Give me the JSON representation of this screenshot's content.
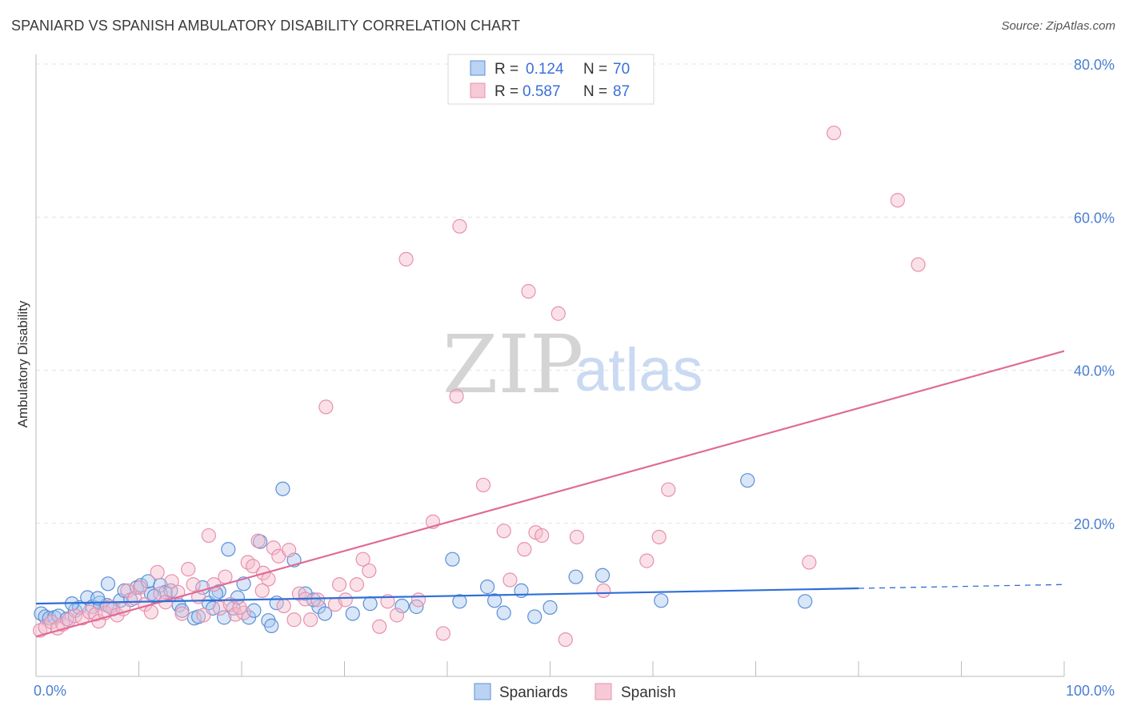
{
  "header": {
    "title": "SPANIARD VS SPANISH AMBULATORY DISABILITY CORRELATION CHART",
    "source": "Source: ZipAtlas.com"
  },
  "watermark": {
    "zip": "ZIP",
    "atlas": "atlas"
  },
  "colors": {
    "spaniards_fill": "#a9c8f0",
    "spaniards_stroke": "#5b8fd6",
    "spaniards_line": "#2f6fd6",
    "spanish_fill": "#f5bccd",
    "spanish_stroke": "#e890ad",
    "spanish_line": "#e06a97",
    "tick_label": "#4a7fd0",
    "grid": "#e3e3e3"
  },
  "legend": {
    "rows": [
      {
        "r_label": "R =",
        "r_value": "0.124",
        "n_label": "N =",
        "n_value": "70"
      },
      {
        "r_label": "R =",
        "r_value": "0.587",
        "n_label": "N =",
        "n_value": "87"
      }
    ],
    "bottom": [
      "Spaniards",
      "Spanish"
    ]
  },
  "chart_data": {
    "type": "scatter",
    "title": "SPANIARD VS SPANISH AMBULATORY DISABILITY CORRELATION CHART",
    "xlabel": "",
    "ylabel": "Ambulatory Disability",
    "xlim": [
      0,
      100
    ],
    "ylim": [
      0,
      80
    ],
    "x_tick_labels": [
      "0.0%",
      "100.0%"
    ],
    "y_ticks": [
      20,
      40,
      60,
      80
    ],
    "y_tick_labels": [
      "20.0%",
      "40.0%",
      "60.0%",
      "80.0%"
    ],
    "grid": true,
    "legend_position": "top-center",
    "series": [
      {
        "name": "Spaniards",
        "r": 0.124,
        "n": 70,
        "trend": {
          "x": [
            0,
            80
          ],
          "y": [
            9.5,
            11.5
          ],
          "dashed_extension_to": [
            100,
            12.0
          ]
        },
        "points": [
          [
            0.5,
            8.2
          ],
          [
            0.9,
            7.8
          ],
          [
            1.3,
            7.6
          ],
          [
            1.8,
            7.7
          ],
          [
            2.2,
            7.9
          ],
          [
            3.0,
            7.5
          ],
          [
            3.8,
            8.6
          ],
          [
            4.2,
            9.0
          ],
          [
            5.0,
            10.3
          ],
          [
            5.5,
            9.1
          ],
          [
            6.2,
            9.6
          ],
          [
            6.9,
            9.3
          ],
          [
            7.0,
            12.1
          ],
          [
            7.5,
            8.8
          ],
          [
            8.2,
            9.9
          ],
          [
            8.6,
            11.2
          ],
          [
            9.2,
            10.0
          ],
          [
            9.8,
            11.6
          ],
          [
            10.2,
            11.9
          ],
          [
            10.9,
            12.4
          ],
          [
            11.2,
            10.8
          ],
          [
            12.1,
            11.9
          ],
          [
            12.6,
            11.0
          ],
          [
            13.1,
            11.2
          ],
          [
            13.9,
            9.3
          ],
          [
            14.2,
            8.6
          ],
          [
            15.4,
            7.6
          ],
          [
            15.8,
            7.8
          ],
          [
            16.2,
            11.6
          ],
          [
            16.8,
            9.6
          ],
          [
            17.2,
            8.9
          ],
          [
            17.8,
            11.1
          ],
          [
            18.3,
            7.7
          ],
          [
            18.7,
            16.6
          ],
          [
            19.2,
            8.9
          ],
          [
            19.6,
            10.3
          ],
          [
            20.2,
            12.1
          ],
          [
            20.7,
            7.7
          ],
          [
            21.2,
            8.6
          ],
          [
            21.8,
            17.6
          ],
          [
            22.6,
            7.3
          ],
          [
            22.9,
            6.6
          ],
          [
            23.4,
            9.6
          ],
          [
            24.0,
            24.5
          ],
          [
            25.1,
            15.2
          ],
          [
            26.2,
            10.8
          ],
          [
            27.5,
            9.1
          ],
          [
            28.1,
            8.2
          ],
          [
            30.8,
            8.2
          ],
          [
            32.5,
            9.5
          ],
          [
            35.6,
            9.2
          ],
          [
            37.0,
            9.1
          ],
          [
            40.5,
            15.3
          ],
          [
            41.2,
            9.8
          ],
          [
            43.9,
            11.7
          ],
          [
            44.6,
            9.9
          ],
          [
            45.5,
            8.3
          ],
          [
            47.2,
            11.2
          ],
          [
            48.5,
            7.8
          ],
          [
            52.5,
            13.0
          ],
          [
            55.1,
            13.2
          ],
          [
            60.8,
            9.9
          ],
          [
            69.2,
            25.6
          ],
          [
            74.8,
            9.8
          ],
          [
            3.5,
            9.5
          ],
          [
            6.0,
            10.2
          ],
          [
            11.5,
            10.5
          ],
          [
            17.5,
            10.8
          ],
          [
            27.0,
            10.0
          ],
          [
            50.0,
            9.0
          ]
        ]
      },
      {
        "name": "Spanish",
        "r": 0.587,
        "n": 87,
        "trend": {
          "x": [
            0,
            100
          ],
          "y": [
            5.2,
            42.5
          ]
        },
        "points": [
          [
            0.4,
            6.0
          ],
          [
            0.9,
            6.4
          ],
          [
            1.5,
            7.1
          ],
          [
            2.1,
            6.3
          ],
          [
            2.6,
            6.8
          ],
          [
            3.2,
            7.4
          ],
          [
            3.8,
            7.9
          ],
          [
            4.5,
            7.6
          ],
          [
            5.2,
            8.4
          ],
          [
            5.8,
            8.1
          ],
          [
            6.1,
            7.2
          ],
          [
            6.7,
            8.3
          ],
          [
            7.2,
            9.1
          ],
          [
            7.9,
            8.0
          ],
          [
            8.5,
            8.8
          ],
          [
            8.9,
            11.2
          ],
          [
            9.6,
            10.2
          ],
          [
            10.1,
            11.6
          ],
          [
            10.6,
            9.4
          ],
          [
            11.2,
            8.4
          ],
          [
            11.8,
            13.6
          ],
          [
            12.1,
            10.8
          ],
          [
            12.6,
            9.7
          ],
          [
            13.2,
            12.4
          ],
          [
            13.8,
            11.0
          ],
          [
            14.2,
            8.2
          ],
          [
            14.8,
            14.0
          ],
          [
            15.3,
            12.0
          ],
          [
            15.8,
            10.4
          ],
          [
            16.3,
            8.0
          ],
          [
            16.8,
            18.4
          ],
          [
            17.3,
            12.0
          ],
          [
            17.9,
            8.9
          ],
          [
            18.4,
            13.0
          ],
          [
            18.9,
            9.4
          ],
          [
            19.4,
            8.1
          ],
          [
            20.2,
            8.3
          ],
          [
            20.6,
            14.9
          ],
          [
            21.1,
            14.4
          ],
          [
            21.6,
            17.7
          ],
          [
            22.1,
            13.5
          ],
          [
            22.6,
            12.7
          ],
          [
            23.1,
            16.8
          ],
          [
            23.6,
            15.7
          ],
          [
            24.1,
            9.2
          ],
          [
            24.6,
            16.5
          ],
          [
            25.1,
            7.4
          ],
          [
            25.6,
            10.8
          ],
          [
            26.2,
            10.1
          ],
          [
            26.7,
            7.4
          ],
          [
            27.4,
            10.0
          ],
          [
            28.2,
            35.2
          ],
          [
            29.1,
            9.4
          ],
          [
            30.1,
            10.0
          ],
          [
            31.2,
            12.0
          ],
          [
            31.8,
            15.3
          ],
          [
            32.4,
            13.8
          ],
          [
            33.4,
            6.5
          ],
          [
            34.2,
            9.8
          ],
          [
            35.1,
            8.0
          ],
          [
            36.0,
            54.5
          ],
          [
            37.2,
            10.0
          ],
          [
            38.6,
            20.2
          ],
          [
            39.6,
            5.6
          ],
          [
            40.9,
            36.6
          ],
          [
            41.2,
            58.8
          ],
          [
            43.5,
            25.0
          ],
          [
            45.5,
            19.0
          ],
          [
            46.1,
            12.6
          ],
          [
            47.5,
            16.6
          ],
          [
            47.9,
            50.3
          ],
          [
            48.6,
            18.8
          ],
          [
            49.2,
            18.4
          ],
          [
            50.8,
            47.4
          ],
          [
            51.5,
            4.8
          ],
          [
            52.6,
            18.2
          ],
          [
            55.2,
            11.2
          ],
          [
            59.4,
            15.1
          ],
          [
            60.6,
            18.2
          ],
          [
            61.5,
            24.4
          ],
          [
            75.2,
            14.9
          ],
          [
            77.6,
            71.0
          ],
          [
            83.8,
            62.2
          ],
          [
            85.8,
            53.8
          ],
          [
            22.0,
            11.2
          ],
          [
            29.5,
            12.0
          ],
          [
            19.8,
            9.0
          ]
        ]
      }
    ]
  }
}
